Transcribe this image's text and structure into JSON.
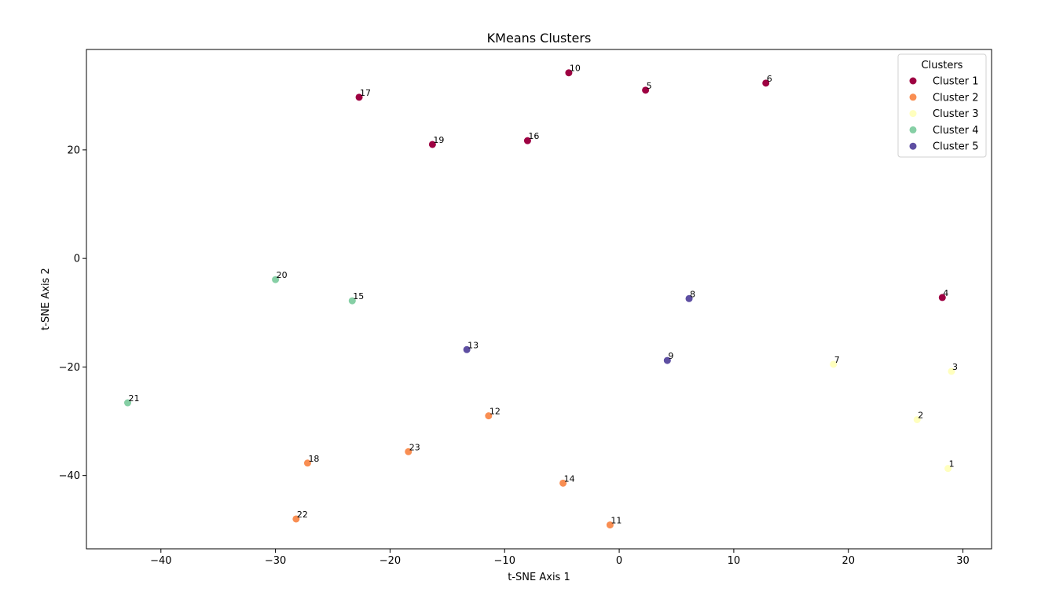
{
  "chart_data": {
    "type": "scatter",
    "title": "KMeans Clusters",
    "xlabel": "t-SNE Axis 1",
    "ylabel": "t-SNE Axis 2",
    "xlim": [
      -46.5,
      32.5
    ],
    "ylim": [
      -53.5,
      38.5
    ],
    "xticks": [
      -40,
      -30,
      -20,
      -10,
      0,
      10,
      20,
      30
    ],
    "yticks": [
      -40,
      -20,
      0,
      20
    ],
    "grid": false,
    "legend": {
      "title": "Clusters",
      "placement": "top-right"
    },
    "series": [
      {
        "name": "Cluster 1",
        "color": "#9e0142",
        "points": [
          {
            "x": -22.7,
            "y": 29.7,
            "label": "17"
          },
          {
            "x": -4.4,
            "y": 34.2,
            "label": "10"
          },
          {
            "x": 2.3,
            "y": 31.0,
            "label": "5"
          },
          {
            "x": 12.8,
            "y": 32.3,
            "label": "6"
          },
          {
            "x": -16.3,
            "y": 21.0,
            "label": "19"
          },
          {
            "x": -8.0,
            "y": 21.7,
            "label": "16"
          },
          {
            "x": 28.2,
            "y": -7.2,
            "label": "4"
          }
        ]
      },
      {
        "name": "Cluster 2",
        "color": "#f98e52",
        "points": [
          {
            "x": -11.4,
            "y": -29.0,
            "label": "12"
          },
          {
            "x": -18.4,
            "y": -35.6,
            "label": "23"
          },
          {
            "x": -27.2,
            "y": -37.7,
            "label": "18"
          },
          {
            "x": -4.9,
            "y": -41.4,
            "label": "14"
          },
          {
            "x": -28.2,
            "y": -48.0,
            "label": "22"
          },
          {
            "x": -0.8,
            "y": -49.1,
            "label": "11"
          }
        ]
      },
      {
        "name": "Cluster 3",
        "color": "#ffffbe",
        "points": [
          {
            "x": 18.7,
            "y": -19.5,
            "label": "7"
          },
          {
            "x": 29.0,
            "y": -20.8,
            "label": "3"
          },
          {
            "x": 26.0,
            "y": -29.7,
            "label": "2"
          },
          {
            "x": 28.7,
            "y": -38.7,
            "label": "1"
          }
        ]
      },
      {
        "name": "Cluster 4",
        "color": "#86cfa5",
        "points": [
          {
            "x": -30.0,
            "y": -3.9,
            "label": "20"
          },
          {
            "x": -23.3,
            "y": -7.8,
            "label": "15"
          },
          {
            "x": -42.9,
            "y": -26.6,
            "label": "21"
          }
        ]
      },
      {
        "name": "Cluster 5",
        "color": "#5e4fa2",
        "points": [
          {
            "x": 6.1,
            "y": -7.4,
            "label": "8"
          },
          {
            "x": -13.3,
            "y": -16.8,
            "label": "13"
          },
          {
            "x": 4.2,
            "y": -18.8,
            "label": "9"
          }
        ]
      }
    ]
  }
}
